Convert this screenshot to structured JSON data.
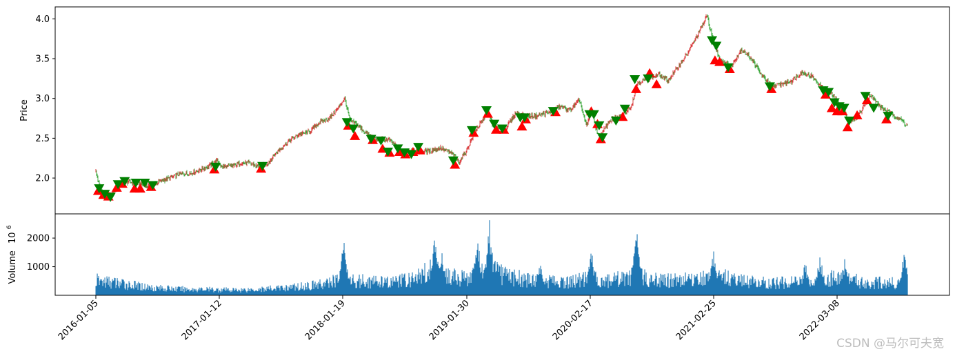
{
  "chart_data": [
    {
      "type": "candlestick",
      "ylabel": "Price",
      "ylim": [
        1.55,
        4.15
      ],
      "yticks": [
        2.0,
        2.5,
        3.0,
        3.5,
        4.0
      ],
      "ytick_labels": [
        "2.0",
        "2.5",
        "3.0",
        "3.5",
        "4.0"
      ],
      "up_color": "#d62728",
      "down_color": "#2ca02c",
      "buy_marker_color": "#ff0000",
      "sell_marker_color": "#008000",
      "price_path": [
        [
          "2016-01-05",
          2.08
        ],
        [
          "2016-01-18",
          1.86
        ],
        [
          "2016-02-05",
          1.77
        ],
        [
          "2016-02-25",
          1.8
        ],
        [
          "2016-03-15",
          1.9
        ],
        [
          "2016-04-10",
          1.95
        ],
        [
          "2016-05-10",
          1.94
        ],
        [
          "2016-06-10",
          1.9
        ],
        [
          "2016-07-10",
          1.95
        ],
        [
          "2016-08-15",
          2.0
        ],
        [
          "2016-09-15",
          2.05
        ],
        [
          "2016-10-15",
          2.06
        ],
        [
          "2016-11-15",
          2.1
        ],
        [
          "2016-12-15",
          2.16
        ],
        [
          "2017-01-05",
          2.22
        ],
        [
          "2017-01-20",
          2.14
        ],
        [
          "2017-02-20",
          2.15
        ],
        [
          "2017-03-20",
          2.19
        ],
        [
          "2017-04-20",
          2.18
        ],
        [
          "2017-05-15",
          2.13
        ],
        [
          "2017-06-10",
          2.2
        ],
        [
          "2017-07-10",
          2.35
        ],
        [
          "2017-08-10",
          2.47
        ],
        [
          "2017-09-10",
          2.55
        ],
        [
          "2017-10-10",
          2.58
        ],
        [
          "2017-11-10",
          2.7
        ],
        [
          "2017-12-10",
          2.75
        ],
        [
          "2018-01-05",
          2.88
        ],
        [
          "2018-01-25",
          3.0
        ],
        [
          "2018-02-10",
          2.72
        ],
        [
          "2018-03-01",
          2.68
        ],
        [
          "2018-04-01",
          2.56
        ],
        [
          "2018-05-01",
          2.48
        ],
        [
          "2018-06-10",
          2.48
        ],
        [
          "2018-07-01",
          2.4
        ],
        [
          "2018-07-20",
          2.3
        ],
        [
          "2018-08-15",
          2.36
        ],
        [
          "2018-09-10",
          2.33
        ],
        [
          "2018-10-10",
          2.34
        ],
        [
          "2018-11-10",
          2.38
        ],
        [
          "2018-12-20",
          2.3
        ],
        [
          "2019-01-05",
          2.2
        ],
        [
          "2019-01-30",
          2.35
        ],
        [
          "2019-02-25",
          2.6
        ],
        [
          "2019-03-20",
          2.72
        ],
        [
          "2019-04-05",
          2.84
        ],
        [
          "2019-04-25",
          2.62
        ],
        [
          "2019-05-30",
          2.62
        ],
        [
          "2019-07-01",
          2.82
        ],
        [
          "2019-08-01",
          2.78
        ],
        [
          "2019-09-01",
          2.78
        ],
        [
          "2019-10-10",
          2.82
        ],
        [
          "2019-11-15",
          2.9
        ],
        [
          "2019-12-15",
          2.85
        ],
        [
          "2020-01-15",
          2.98
        ],
        [
          "2020-02-05",
          2.65
        ],
        [
          "2020-02-20",
          2.82
        ],
        [
          "2020-03-15",
          2.5
        ],
        [
          "2020-04-15",
          2.72
        ],
        [
          "2020-05-20",
          2.78
        ],
        [
          "2020-06-20",
          2.9
        ],
        [
          "2020-07-10",
          3.2
        ],
        [
          "2020-08-10",
          3.25
        ],
        [
          "2020-09-10",
          3.3
        ],
        [
          "2020-10-10",
          3.22
        ],
        [
          "2020-11-10",
          3.4
        ],
        [
          "2020-12-10",
          3.58
        ],
        [
          "2021-01-20",
          3.9
        ],
        [
          "2021-02-05",
          4.04
        ],
        [
          "2021-02-25",
          3.7
        ],
        [
          "2021-03-15",
          3.5
        ],
        [
          "2021-04-20",
          3.4
        ],
        [
          "2021-05-20",
          3.62
        ],
        [
          "2021-06-20",
          3.5
        ],
        [
          "2021-07-20",
          3.3
        ],
        [
          "2021-08-20",
          3.15
        ],
        [
          "2021-09-20",
          3.18
        ],
        [
          "2021-10-20",
          3.22
        ],
        [
          "2021-11-20",
          3.33
        ],
        [
          "2021-12-20",
          3.28
        ],
        [
          "2022-01-25",
          3.12
        ],
        [
          "2022-02-20",
          3.05
        ],
        [
          "2022-03-20",
          2.9
        ],
        [
          "2022-04-20",
          2.7
        ],
        [
          "2022-05-20",
          2.82
        ],
        [
          "2022-06-20",
          3.05
        ],
        [
          "2022-07-20",
          2.9
        ],
        [
          "2022-08-20",
          2.82
        ],
        [
          "2022-09-15",
          2.76
        ],
        [
          "2022-10-15",
          2.66
        ]
      ],
      "buy_signals": [
        [
          "2016-01-12",
          1.84
        ],
        [
          "2016-01-28",
          1.79
        ],
        [
          "2016-02-12",
          1.77
        ],
        [
          "2016-03-08",
          1.88
        ],
        [
          "2016-03-25",
          1.93
        ],
        [
          "2016-05-01",
          1.87
        ],
        [
          "2016-05-18",
          1.87
        ],
        [
          "2016-06-20",
          1.89
        ],
        [
          "2016-12-28",
          2.11
        ],
        [
          "2017-05-18",
          2.12
        ],
        [
          "2018-02-05",
          2.66
        ],
        [
          "2018-02-25",
          2.53
        ],
        [
          "2018-04-20",
          2.48
        ],
        [
          "2018-05-20",
          2.37
        ],
        [
          "2018-06-10",
          2.32
        ],
        [
          "2018-07-10",
          2.33
        ],
        [
          "2018-07-28",
          2.3
        ],
        [
          "2018-08-20",
          2.33
        ],
        [
          "2018-09-10",
          2.35
        ],
        [
          "2018-12-25",
          2.17
        ],
        [
          "2019-02-20",
          2.57
        ],
        [
          "2019-04-05",
          2.81
        ],
        [
          "2019-05-01",
          2.61
        ],
        [
          "2019-05-25",
          2.61
        ],
        [
          "2019-07-20",
          2.65
        ],
        [
          "2019-08-01",
          2.74
        ],
        [
          "2019-11-01",
          2.83
        ],
        [
          "2020-02-20",
          2.84
        ],
        [
          "2020-03-10",
          2.68
        ],
        [
          "2020-03-20",
          2.49
        ],
        [
          "2020-05-25",
          2.77
        ],
        [
          "2020-07-05",
          3.12
        ],
        [
          "2020-08-15",
          3.32
        ],
        [
          "2020-09-05",
          3.18
        ],
        [
          "2021-03-01",
          3.48
        ],
        [
          "2021-03-15",
          3.46
        ],
        [
          "2021-04-15",
          3.37
        ],
        [
          "2021-08-20",
          3.12
        ],
        [
          "2022-02-01",
          3.05
        ],
        [
          "2022-02-20",
          2.88
        ],
        [
          "2022-03-08",
          2.84
        ],
        [
          "2022-03-25",
          2.84
        ],
        [
          "2022-04-10",
          2.64
        ],
        [
          "2022-05-10",
          2.79
        ],
        [
          "2022-06-10",
          2.98
        ],
        [
          "2022-08-10",
          2.74
        ]
      ],
      "sell_signals": [
        [
          "2016-01-15",
          1.87
        ],
        [
          "2016-02-01",
          1.8
        ],
        [
          "2016-02-18",
          1.76
        ],
        [
          "2016-03-12",
          1.92
        ],
        [
          "2016-04-01",
          1.96
        ],
        [
          "2016-05-05",
          1.94
        ],
        [
          "2016-06-01",
          1.94
        ],
        [
          "2016-06-25",
          1.91
        ],
        [
          "2017-01-01",
          2.14
        ],
        [
          "2017-05-22",
          2.15
        ],
        [
          "2018-02-01",
          2.7
        ],
        [
          "2018-02-20",
          2.62
        ],
        [
          "2018-04-15",
          2.49
        ],
        [
          "2018-05-15",
          2.47
        ],
        [
          "2018-06-05",
          2.33
        ],
        [
          "2018-07-05",
          2.37
        ],
        [
          "2018-07-25",
          2.32
        ],
        [
          "2018-08-15",
          2.3
        ],
        [
          "2018-09-05",
          2.39
        ],
        [
          "2018-12-20",
          2.22
        ],
        [
          "2019-02-15",
          2.6
        ],
        [
          "2019-04-01",
          2.85
        ],
        [
          "2019-04-25",
          2.68
        ],
        [
          "2019-05-20",
          2.62
        ],
        [
          "2019-07-15",
          2.76
        ],
        [
          "2019-07-28",
          2.76
        ],
        [
          "2019-10-25",
          2.84
        ],
        [
          "2020-02-15",
          2.8
        ],
        [
          "2020-02-28",
          2.8
        ],
        [
          "2020-03-15",
          2.66
        ],
        [
          "2020-03-25",
          2.51
        ],
        [
          "2020-05-05",
          2.72
        ],
        [
          "2020-06-01",
          2.87
        ],
        [
          "2020-07-01",
          3.24
        ],
        [
          "2020-08-10",
          3.25
        ],
        [
          "2021-02-20",
          3.73
        ],
        [
          "2021-03-05",
          3.66
        ],
        [
          "2021-04-10",
          3.39
        ],
        [
          "2021-08-15",
          3.15
        ],
        [
          "2022-01-25",
          3.1
        ],
        [
          "2022-02-10",
          3.08
        ],
        [
          "2022-02-28",
          2.95
        ],
        [
          "2022-03-15",
          2.9
        ],
        [
          "2022-03-30",
          2.88
        ],
        [
          "2022-04-15",
          2.72
        ],
        [
          "2022-06-05",
          3.03
        ],
        [
          "2022-07-01",
          2.88
        ],
        [
          "2022-08-15",
          2.78
        ]
      ]
    },
    {
      "type": "bar",
      "ylabel": "Volume",
      "ylabel_unit": "10",
      "ylabel_unit_exp": "6",
      "ylim": [
        0,
        2750
      ],
      "yticks": [
        1000,
        2000
      ],
      "ytick_labels": [
        "1000",
        "2000"
      ],
      "bar_color": "#1f77b4",
      "volume_profile": [
        [
          "2016-01-05",
          700
        ],
        [
          "2016-03-01",
          600
        ],
        [
          "2016-06-01",
          400
        ],
        [
          "2016-09-01",
          300
        ],
        [
          "2016-12-01",
          280
        ],
        [
          "2017-03-01",
          250
        ],
        [
          "2017-06-01",
          300
        ],
        [
          "2017-09-01",
          400
        ],
        [
          "2017-12-01",
          550
        ],
        [
          "2018-01-20",
          900
        ],
        [
          "2018-03-01",
          700
        ],
        [
          "2018-06-01",
          600
        ],
        [
          "2018-09-01",
          800
        ],
        [
          "2018-10-20",
          1400
        ],
        [
          "2018-12-01",
          900
        ],
        [
          "2019-01-30",
          800
        ],
        [
          "2019-03-01",
          1300
        ],
        [
          "2019-04-10",
          1200
        ],
        [
          "2019-06-01",
          900
        ],
        [
          "2019-09-01",
          700
        ],
        [
          "2019-12-01",
          600
        ],
        [
          "2020-02-17",
          800
        ],
        [
          "2020-04-01",
          700
        ],
        [
          "2020-07-01",
          900
        ],
        [
          "2020-10-01",
          700
        ],
        [
          "2021-01-20",
          800
        ],
        [
          "2021-02-25",
          1000
        ],
        [
          "2021-06-01",
          650
        ],
        [
          "2021-10-01",
          600
        ],
        [
          "2022-01-01",
          700
        ],
        [
          "2022-03-08",
          900
        ],
        [
          "2022-06-01",
          600
        ],
        [
          "2022-10-15",
          600
        ]
      ],
      "volume_spikes": [
        [
          "2018-01-22",
          1950
        ],
        [
          "2018-10-25",
          2300
        ],
        [
          "2018-11-15",
          1800
        ],
        [
          "2019-03-05",
          2000
        ],
        [
          "2019-04-10",
          2720
        ],
        [
          "2019-09-15",
          1150
        ],
        [
          "2020-02-20",
          1750
        ],
        [
          "2020-07-06",
          2400
        ],
        [
          "2021-02-25",
          1650
        ],
        [
          "2021-12-01",
          1200
        ],
        [
          "2022-01-15",
          1450
        ],
        [
          "2022-04-01",
          1300
        ],
        [
          "2022-10-05",
          1600
        ]
      ]
    }
  ],
  "x_axis": {
    "tick_dates": [
      "2016-01-05",
      "2017-01-12",
      "2018-01-19",
      "2019-01-30",
      "2020-02-17",
      "2021-02-25",
      "2022-03-08"
    ],
    "tick_labels": [
      "2016-01-05",
      "2017-01-12",
      "2018-01-19",
      "2019-01-30",
      "2020-02-17",
      "2021-02-25",
      "2022-03-08"
    ],
    "start": "2016-01-05",
    "end": "2022-10-15"
  },
  "watermark": "CSDN @马尔可夫宽"
}
